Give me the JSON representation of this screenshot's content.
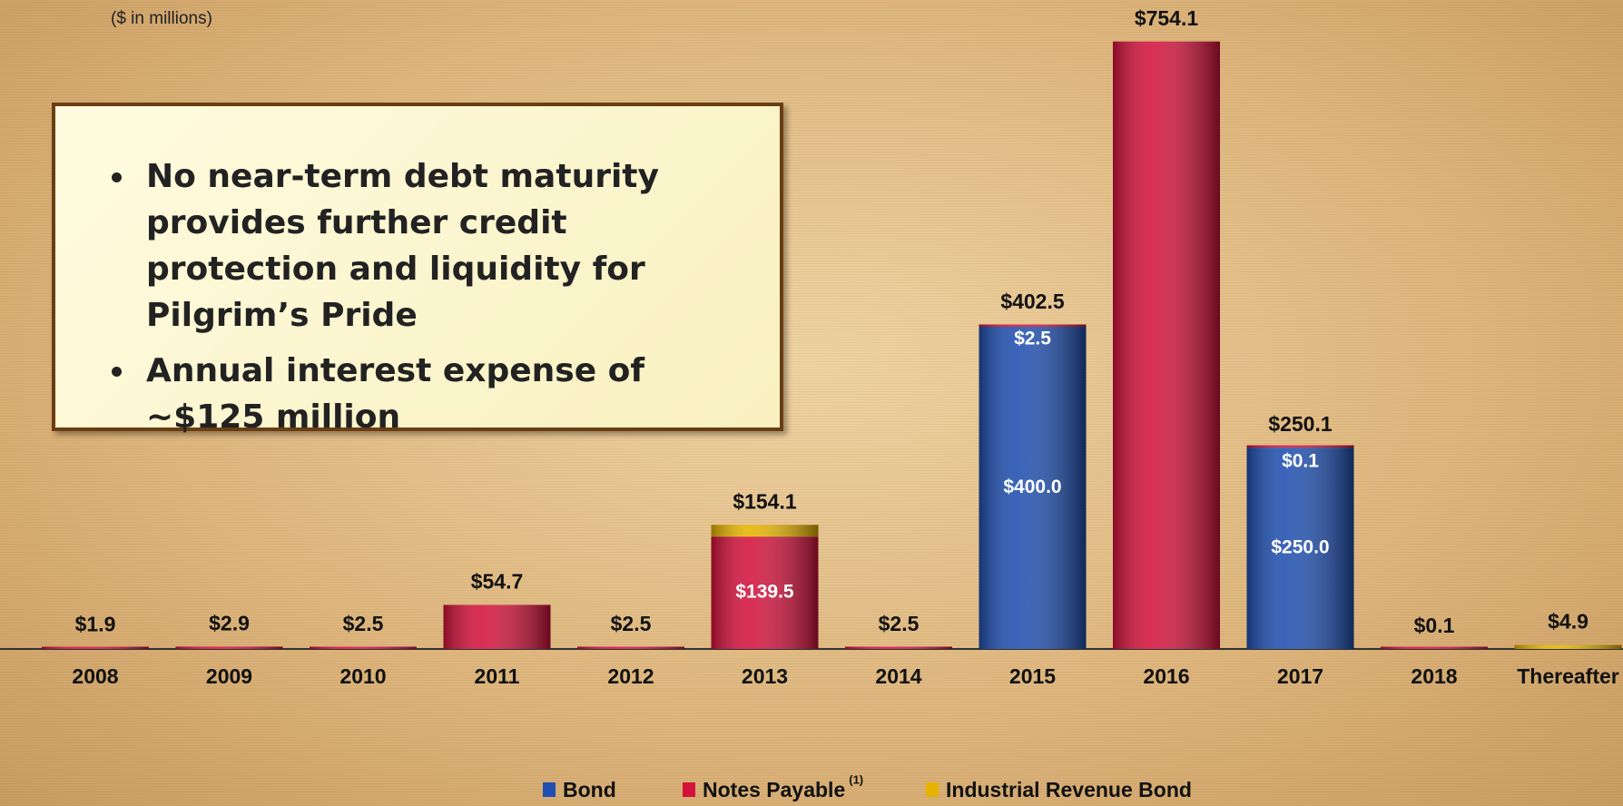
{
  "title": "($ in millions)",
  "bullets": [
    "No near-term debt maturity provides further credit protection and liquidity for Pilgrim’s Pride",
    "Annual interest expense of ~$125 million"
  ],
  "chart_data": {
    "type": "bar",
    "stacked": true,
    "categories": [
      "2008",
      "2009",
      "2010",
      "2011",
      "2012",
      "2013",
      "2014",
      "2015",
      "2016",
      "2017",
      "2018",
      "Thereafter"
    ],
    "series": [
      {
        "name": "Bond",
        "color": "#1f4fb0",
        "values": [
          null,
          null,
          null,
          null,
          null,
          null,
          null,
          400.0,
          null,
          250.0,
          null,
          null
        ],
        "value_labels": [
          null,
          null,
          null,
          null,
          null,
          null,
          null,
          "$400.0",
          null,
          "$250.0",
          null,
          null
        ]
      },
      {
        "name": "Notes Payable",
        "color": "#d3123c",
        "values": [
          1.9,
          2.9,
          2.5,
          54.7,
          2.5,
          139.5,
          2.5,
          2.5,
          754.1,
          0.1,
          0.1,
          null
        ],
        "value_labels": [
          null,
          null,
          null,
          null,
          null,
          "$139.5",
          null,
          "$2.5",
          null,
          "$0.1",
          null,
          null
        ]
      },
      {
        "name": "Industrial Revenue Bond",
        "color": "#e6b400",
        "values": [
          null,
          null,
          null,
          null,
          null,
          14.6,
          null,
          null,
          null,
          null,
          null,
          4.9
        ],
        "value_labels": [
          null,
          null,
          null,
          null,
          null,
          null,
          null,
          null,
          null,
          null,
          null,
          null
        ]
      }
    ],
    "totals": {
      "values": [
        1.9,
        2.9,
        2.5,
        54.7,
        2.5,
        154.1,
        2.5,
        402.5,
        754.1,
        250.1,
        0.1,
        4.9
      ],
      "value_labels": [
        "$1.9",
        "$2.9",
        "$2.5",
        "$54.7",
        "$2.5",
        "$154.1",
        "$2.5",
        "$402.5",
        "$754.1",
        "$250.1",
        "$0.1",
        "$4.9"
      ]
    },
    "legend_footnote": "(1)",
    "ylim": [
      0,
      800
    ]
  }
}
